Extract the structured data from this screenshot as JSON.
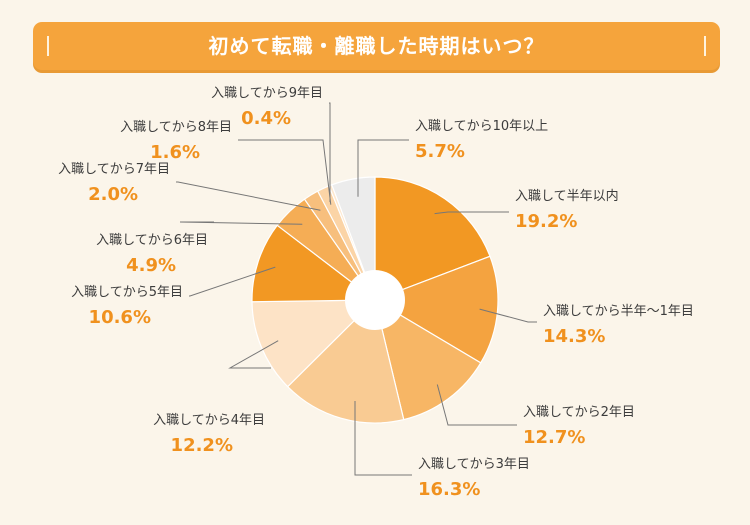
{
  "title": "初めて転職・離職した時期はいつ？",
  "colors": {
    "title_bg": "#f5a43c",
    "value_text": "#f0911e",
    "label_text": "#3c3c3c",
    "leader_line": "#777777"
  },
  "chart_data": {
    "type": "pie",
    "title": "初めて転職・離職した時期はいつ？",
    "donut": true,
    "start": "top (12 o'clock), clockwise",
    "slices": [
      {
        "label": "入職して半年以内",
        "value": 19.2,
        "value_label": "19.2%",
        "color": "#f29823"
      },
      {
        "label": "入職してから半年〜1年目",
        "value": 14.3,
        "value_label": "14.3%",
        "color": "#f4a340"
      },
      {
        "label": "入職してから2年目",
        "value": 12.7,
        "value_label": "12.7%",
        "color": "#f7b665"
      },
      {
        "label": "入職してから3年目",
        "value": 16.3,
        "value_label": "16.3%",
        "color": "#f9cb93"
      },
      {
        "label": "入職してから4年目",
        "value": 12.2,
        "value_label": "12.2%",
        "color": "#fde3c6"
      },
      {
        "label": "入職してから5年目",
        "value": 10.6,
        "value_label": "10.6%",
        "color": "#f29823"
      },
      {
        "label": "入職してから6年目",
        "value": 4.9,
        "value_label": "4.9%",
        "color": "#f5ad55"
      },
      {
        "label": "入職してから7年目",
        "value": 2.0,
        "value_label": "2.0%",
        "color": "#f7bf7d"
      },
      {
        "label": "入職してから8年目",
        "value": 1.6,
        "value_label": "1.6%",
        "color": "#fbd4a6"
      },
      {
        "label": "入職してから9年目",
        "value": 0.4,
        "value_label": "0.4%",
        "color": "#fde8cf"
      },
      {
        "label": "入職してから10年以上",
        "value": 5.7,
        "value_label": "5.7%",
        "color": "#ececec"
      }
    ]
  }
}
